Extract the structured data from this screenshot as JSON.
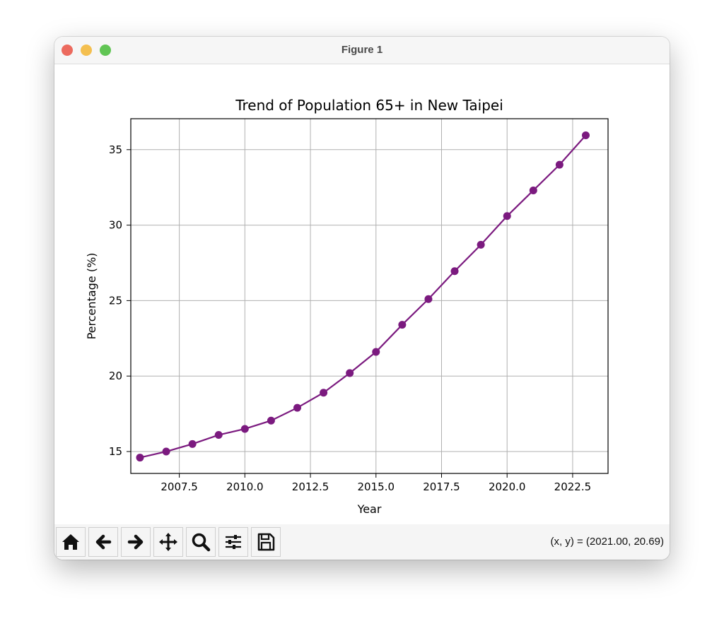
{
  "window": {
    "title": "Figure 1"
  },
  "toolbar": {
    "tools": [
      {
        "name": "home-icon"
      },
      {
        "name": "back-arrow-icon"
      },
      {
        "name": "forward-arrow-icon"
      },
      {
        "name": "pan-icon"
      },
      {
        "name": "zoom-icon"
      },
      {
        "name": "configure-subplots-icon"
      },
      {
        "name": "save-icon"
      }
    ],
    "coords": "(x, y) = (2021.00, 20.69)"
  },
  "chart_data": {
    "type": "line",
    "title": "Trend of Population 65+ in New Taipei",
    "xlabel": "Year",
    "ylabel": "Percentage (%)",
    "xlim": [
      2005.65,
      2023.85
    ],
    "ylim": [
      13.55,
      37.05
    ],
    "xticks": [
      2007.5,
      2010.0,
      2012.5,
      2015.0,
      2017.5,
      2020.0,
      2022.5
    ],
    "xtick_labels": [
      "2007.5",
      "2010.0",
      "2012.5",
      "2015.0",
      "2017.5",
      "2020.0",
      "2022.5"
    ],
    "yticks": [
      15,
      20,
      25,
      30,
      35
    ],
    "ytick_labels": [
      "15",
      "20",
      "25",
      "30",
      "35"
    ],
    "grid": true,
    "line_color": "#7b1a7f",
    "x": [
      2006,
      2007,
      2008,
      2009,
      2010,
      2011,
      2012,
      2013,
      2014,
      2015,
      2016,
      2017,
      2018,
      2019,
      2020,
      2021,
      2022,
      2023
    ],
    "y": [
      14.6,
      15.0,
      15.5,
      16.1,
      16.5,
      17.05,
      17.9,
      18.9,
      20.2,
      21.6,
      23.4,
      25.1,
      26.95,
      28.7,
      30.6,
      32.3,
      34.0,
      35.95
    ]
  }
}
